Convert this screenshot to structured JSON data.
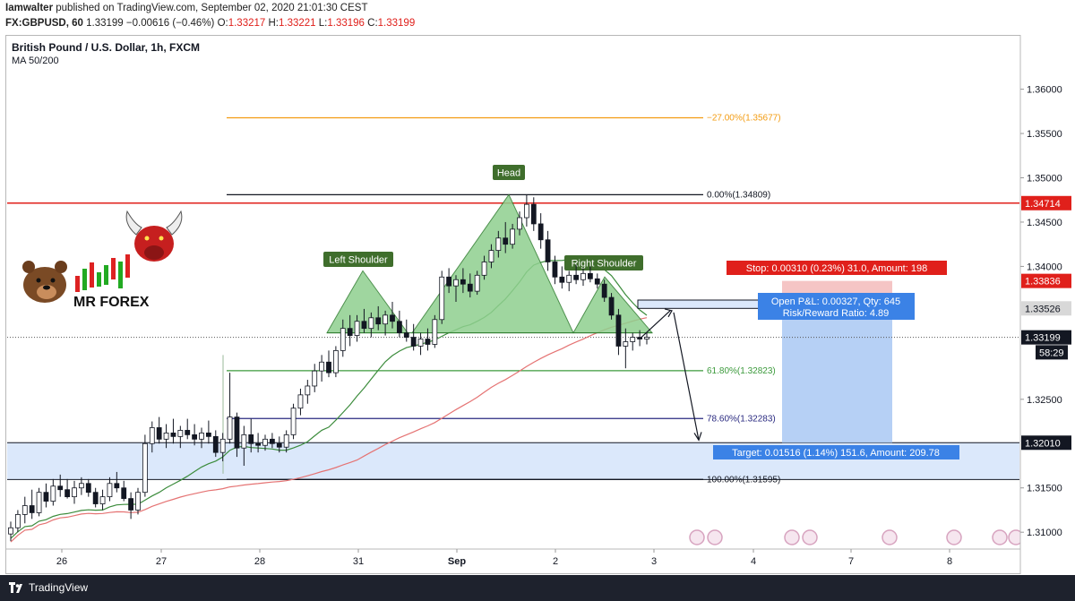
{
  "header": {
    "author": "Iamwalter",
    "published": "published on TradingView.com, September 02, 2020 21:01:30 CEST",
    "symbol": "FX:GBPUSD, 60",
    "last": "1.33199",
    "change": "−0.00616 (−0.46%)",
    "o_label": "O:",
    "o": "1.33217",
    "h_label": "H:",
    "h": "1.33221",
    "l_label": "L:",
    "l": "1.33196",
    "c_label": "C:",
    "c": "1.33199"
  },
  "chart_title": "British Pound / U.S. Dollar, 1h, FXCM",
  "indicator_label": "MA 50/200",
  "logo": {
    "text": "MR FOREX"
  },
  "footer": {
    "brand": "TradingView"
  },
  "colors": {
    "up": "#26a69a",
    "down": "#131722",
    "ma50": "#3c8c3c",
    "ma200": "#e57373",
    "resistance": "#e0201b",
    "pattern_fill": "#8fd08f",
    "zone": "#dbe8fb",
    "long_target": "#a9c8f3",
    "stop_zone": "#f3b7b7"
  },
  "chart_data": {
    "type": "candlestick",
    "ylim": [
      1.3082,
      1.364
    ],
    "y_ticks": [
      "1.36000",
      "1.35500",
      "1.35000",
      "1.34500",
      "1.34000",
      "1.32500",
      "1.31500",
      "1.31000"
    ],
    "x_ticks": [
      "26",
      "27",
      "28",
      "31",
      "Sep",
      "2",
      "3",
      "4",
      "7",
      "8"
    ],
    "price_labels": [
      {
        "text": "1.34714",
        "value": 1.34714,
        "style": "red"
      },
      {
        "text": "1.33836",
        "value": 1.33836,
        "style": "red"
      },
      {
        "text": "1.33526",
        "value": 1.33526,
        "style": "gray"
      },
      {
        "text": "1.33199",
        "value": 1.33199,
        "style": "dark"
      },
      {
        "text": "58:29",
        "value": 1.3303,
        "style": "countdown"
      },
      {
        "text": "1.32010",
        "value": 1.3201,
        "style": "dark"
      }
    ],
    "fibonacci": [
      {
        "label": "−27.00%(1.35677)",
        "value": 1.35677,
        "color": "#f39c12"
      },
      {
        "label": "0.00%(1.34809)",
        "value": 1.34809,
        "color": "#131722"
      },
      {
        "label": "61.80%(1.32823)",
        "value": 1.32823,
        "color": "#3c9a3c"
      },
      {
        "label": "78.60%(1.32283)",
        "value": 1.32283,
        "color": "#2a2a80"
      },
      {
        "label": "100.00%(1.31595)",
        "value": 1.31595,
        "color": "#131722"
      }
    ],
    "resistance": 1.34714,
    "support_zone": [
      1.31595,
      1.3201
    ],
    "neckline": 1.3325,
    "pattern_labels": [
      "Left Shoulder",
      "Head",
      "Right Shoulder"
    ],
    "position": {
      "stop_label": "Stop: 0.00310 (0.23%) 31.0, Amount: 198",
      "open_label_1": "Open P&L: 0.00327, Qty: 645",
      "open_label_2": "Risk/Reward Ratio: 4.89",
      "target_label": "Target: 0.01516 (1.14%) 151.6, Amount: 209.78",
      "entry": 1.33526,
      "stop": 1.33836,
      "target": 1.3201
    },
    "candles": [
      [
        1.3098,
        1.3112,
        1.309,
        1.3105
      ],
      [
        1.3105,
        1.3125,
        1.31,
        1.312
      ],
      [
        1.312,
        1.314,
        1.311,
        1.313
      ],
      [
        1.313,
        1.3148,
        1.3115,
        1.3122
      ],
      [
        1.3122,
        1.315,
        1.3118,
        1.3145
      ],
      [
        1.3145,
        1.3155,
        1.3128,
        1.3135
      ],
      [
        1.3135,
        1.316,
        1.313,
        1.3152
      ],
      [
        1.3152,
        1.3165,
        1.314,
        1.3148
      ],
      [
        1.3148,
        1.316,
        1.3138,
        1.314
      ],
      [
        1.314,
        1.3158,
        1.3132,
        1.315
      ],
      [
        1.315,
        1.3162,
        1.3142,
        1.3155
      ],
      [
        1.3155,
        1.316,
        1.314,
        1.3145
      ],
      [
        1.3145,
        1.315,
        1.3128,
        1.3132
      ],
      [
        1.3132,
        1.3148,
        1.3125,
        1.314
      ],
      [
        1.314,
        1.3162,
        1.3135,
        1.3155
      ],
      [
        1.3155,
        1.3168,
        1.3145,
        1.315
      ],
      [
        1.315,
        1.3158,
        1.3135,
        1.3138
      ],
      [
        1.3138,
        1.3145,
        1.3115,
        1.3125
      ],
      [
        1.3125,
        1.315,
        1.312,
        1.3145
      ],
      [
        1.3145,
        1.321,
        1.314,
        1.32
      ],
      [
        1.32,
        1.3225,
        1.319,
        1.3218
      ],
      [
        1.3218,
        1.323,
        1.32,
        1.3205
      ],
      [
        1.3205,
        1.3222,
        1.3195,
        1.3212
      ],
      [
        1.3212,
        1.3228,
        1.32,
        1.3208
      ],
      [
        1.3208,
        1.322,
        1.3195,
        1.3215
      ],
      [
        1.3215,
        1.3228,
        1.3205,
        1.321
      ],
      [
        1.321,
        1.3222,
        1.3198,
        1.3205
      ],
      [
        1.3205,
        1.3218,
        1.3195,
        1.3212
      ],
      [
        1.3212,
        1.3226,
        1.32,
        1.3208
      ],
      [
        1.3208,
        1.3215,
        1.3185,
        1.319
      ],
      [
        1.319,
        1.3212,
        1.318,
        1.3205
      ],
      [
        1.3205,
        1.328,
        1.32,
        1.323
      ],
      [
        1.323,
        1.3235,
        1.3185,
        1.3195
      ],
      [
        1.3195,
        1.322,
        1.3175,
        1.321
      ],
      [
        1.321,
        1.3228,
        1.319,
        1.32
      ],
      [
        1.32,
        1.3212,
        1.319,
        1.3198
      ],
      [
        1.3198,
        1.321,
        1.3192,
        1.3205
      ],
      [
        1.3205,
        1.3212,
        1.3195,
        1.32
      ],
      [
        1.32,
        1.3208,
        1.319,
        1.3196
      ],
      [
        1.3196,
        1.3215,
        1.319,
        1.321
      ],
      [
        1.321,
        1.3245,
        1.3205,
        1.324
      ],
      [
        1.324,
        1.3262,
        1.3232,
        1.3255
      ],
      [
        1.3255,
        1.3272,
        1.3245,
        1.3265
      ],
      [
        1.3265,
        1.329,
        1.3258,
        1.3282
      ],
      [
        1.3282,
        1.33,
        1.327,
        1.3292
      ],
      [
        1.3292,
        1.3305,
        1.3275,
        1.328
      ],
      [
        1.328,
        1.331,
        1.3275,
        1.3305
      ],
      [
        1.3305,
        1.334,
        1.3298,
        1.333
      ],
      [
        1.333,
        1.3345,
        1.331,
        1.3322
      ],
      [
        1.3322,
        1.3345,
        1.3315,
        1.3338
      ],
      [
        1.3338,
        1.3352,
        1.3325,
        1.333
      ],
      [
        1.333,
        1.3348,
        1.332,
        1.3342
      ],
      [
        1.3342,
        1.3355,
        1.3328,
        1.3335
      ],
      [
        1.3335,
        1.335,
        1.3322,
        1.3345
      ],
      [
        1.3345,
        1.336,
        1.333,
        1.3338
      ],
      [
        1.3338,
        1.335,
        1.332,
        1.3325
      ],
      [
        1.3325,
        1.334,
        1.3315,
        1.332
      ],
      [
        1.332,
        1.3335,
        1.3305,
        1.331
      ],
      [
        1.331,
        1.3325,
        1.33,
        1.3318
      ],
      [
        1.3318,
        1.333,
        1.3305,
        1.3312
      ],
      [
        1.3312,
        1.3345,
        1.3308,
        1.334
      ],
      [
        1.334,
        1.3395,
        1.3335,
        1.3388
      ],
      [
        1.3388,
        1.3398,
        1.337,
        1.3378
      ],
      [
        1.3378,
        1.339,
        1.336,
        1.3385
      ],
      [
        1.3385,
        1.3398,
        1.337,
        1.338
      ],
      [
        1.338,
        1.3392,
        1.3365,
        1.3372
      ],
      [
        1.3372,
        1.3395,
        1.3368,
        1.339
      ],
      [
        1.339,
        1.3412,
        1.3385,
        1.3405
      ],
      [
        1.3405,
        1.3425,
        1.3398,
        1.3418
      ],
      [
        1.3418,
        1.344,
        1.341,
        1.3432
      ],
      [
        1.3432,
        1.345,
        1.3415,
        1.3425
      ],
      [
        1.3425,
        1.3448,
        1.342,
        1.3442
      ],
      [
        1.3442,
        1.3462,
        1.3435,
        1.3455
      ],
      [
        1.3455,
        1.3481,
        1.3445,
        1.347
      ],
      [
        1.347,
        1.3478,
        1.344,
        1.3448
      ],
      [
        1.3448,
        1.346,
        1.342,
        1.343
      ],
      [
        1.343,
        1.344,
        1.3395,
        1.3405
      ],
      [
        1.3405,
        1.3412,
        1.338,
        1.3388
      ],
      [
        1.3388,
        1.34,
        1.3375,
        1.3382
      ],
      [
        1.3382,
        1.3395,
        1.3372,
        1.339
      ],
      [
        1.339,
        1.3402,
        1.338,
        1.3385
      ],
      [
        1.3385,
        1.3398,
        1.3378,
        1.3392
      ],
      [
        1.3392,
        1.34,
        1.3382,
        1.3386
      ],
      [
        1.3386,
        1.3392,
        1.3375,
        1.338
      ],
      [
        1.338,
        1.3385,
        1.336,
        1.3365
      ],
      [
        1.3365,
        1.337,
        1.334,
        1.3345
      ],
      [
        1.3345,
        1.3352,
        1.33,
        1.331
      ],
      [
        1.331,
        1.333,
        1.3285,
        1.3315
      ],
      [
        1.3315,
        1.3325,
        1.3305,
        1.332
      ],
      [
        1.332,
        1.3328,
        1.331,
        1.3318
      ],
      [
        1.3318,
        1.3325,
        1.3312,
        1.332
      ]
    ]
  }
}
